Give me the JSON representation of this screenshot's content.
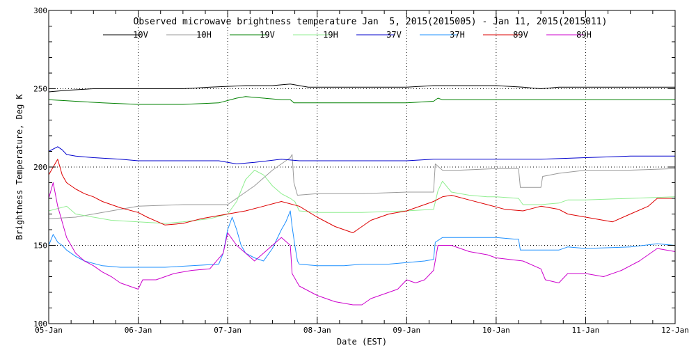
{
  "chart_data": {
    "type": "line",
    "title": "Observed microwave brightness temperature Jan  5, 2015(2015005) - Jan 11, 2015(2015011)",
    "xlabel": "Date (EST)",
    "ylabel": "Brightness Temperature, Deg K",
    "xlim": [
      0,
      7
    ],
    "ylim": [
      100,
      300
    ],
    "x_ticks": [
      {
        "x": 0,
        "label": "05-Jan"
      },
      {
        "x": 1,
        "label": "06-Jan"
      },
      {
        "x": 2,
        "label": "07-Jan"
      },
      {
        "x": 3,
        "label": "08-Jan"
      },
      {
        "x": 4,
        "label": "09-Jan"
      },
      {
        "x": 5,
        "label": "10-Jan"
      },
      {
        "x": 6,
        "label": "11-Jan"
      },
      {
        "x": 7,
        "label": "12-Jan"
      }
    ],
    "y_ticks": [
      100,
      150,
      200,
      250,
      300
    ],
    "grid": "dotted at major ticks",
    "legend": "top",
    "series": [
      {
        "name": "10V",
        "color": "#000000",
        "points": [
          [
            0,
            248
          ],
          [
            0.2,
            249
          ],
          [
            0.5,
            250
          ],
          [
            1.0,
            250
          ],
          [
            1.5,
            250
          ],
          [
            1.8,
            251
          ],
          [
            2.2,
            252
          ],
          [
            2.5,
            252
          ],
          [
            2.7,
            253
          ],
          [
            2.8,
            252
          ],
          [
            2.9,
            251
          ],
          [
            3.5,
            251
          ],
          [
            4.0,
            251
          ],
          [
            4.3,
            252
          ],
          [
            4.5,
            252
          ],
          [
            4.8,
            252
          ],
          [
            5.0,
            252
          ],
          [
            5.3,
            251
          ],
          [
            5.5,
            250
          ],
          [
            5.7,
            251
          ],
          [
            6.0,
            251
          ],
          [
            6.5,
            251
          ],
          [
            7,
            251
          ]
        ]
      },
      {
        "name": "10H",
        "color": "#999999",
        "points": [
          [
            0,
            167
          ],
          [
            0.3,
            168
          ],
          [
            0.6,
            171
          ],
          [
            0.8,
            173
          ],
          [
            1.0,
            175
          ],
          [
            1.5,
            176
          ],
          [
            2.0,
            176
          ],
          [
            2.1,
            180
          ],
          [
            2.3,
            188
          ],
          [
            2.5,
            198
          ],
          [
            2.7,
            206
          ],
          [
            2.72,
            208
          ],
          [
            2.74,
            190
          ],
          [
            2.78,
            182
          ],
          [
            3.0,
            183
          ],
          [
            3.5,
            183
          ],
          [
            4.0,
            184
          ],
          [
            4.3,
            184
          ],
          [
            4.32,
            202
          ],
          [
            4.4,
            198
          ],
          [
            4.6,
            198
          ],
          [
            5.0,
            199
          ],
          [
            5.25,
            199
          ],
          [
            5.27,
            187
          ],
          [
            5.4,
            187
          ],
          [
            5.5,
            187
          ],
          [
            5.52,
            194
          ],
          [
            5.7,
            196
          ],
          [
            6.0,
            198
          ],
          [
            6.5,
            198
          ],
          [
            7,
            199
          ]
        ]
      },
      {
        "name": "19V",
        "color": "#008000",
        "points": [
          [
            0,
            243
          ],
          [
            0.3,
            242
          ],
          [
            0.6,
            241
          ],
          [
            1.0,
            240
          ],
          [
            1.5,
            240
          ],
          [
            1.9,
            241
          ],
          [
            2.1,
            244
          ],
          [
            2.2,
            245
          ],
          [
            2.4,
            244
          ],
          [
            2.6,
            243
          ],
          [
            2.7,
            243
          ],
          [
            2.74,
            241
          ],
          [
            2.8,
            241
          ],
          [
            3.5,
            241
          ],
          [
            4.0,
            241
          ],
          [
            4.3,
            242
          ],
          [
            4.35,
            244
          ],
          [
            4.4,
            243
          ],
          [
            5.0,
            243
          ],
          [
            5.5,
            243
          ],
          [
            6.0,
            243
          ],
          [
            6.5,
            243
          ],
          [
            7,
            243
          ]
        ]
      },
      {
        "name": "19H",
        "color": "#90ee90",
        "points": [
          [
            0,
            172
          ],
          [
            0.2,
            175
          ],
          [
            0.3,
            170
          ],
          [
            0.5,
            168
          ],
          [
            0.7,
            166
          ],
          [
            1.0,
            165
          ],
          [
            1.3,
            164
          ],
          [
            1.5,
            165
          ],
          [
            1.8,
            167
          ],
          [
            2.0,
            170
          ],
          [
            2.1,
            178
          ],
          [
            2.2,
            192
          ],
          [
            2.3,
            198
          ],
          [
            2.4,
            195
          ],
          [
            2.5,
            188
          ],
          [
            2.6,
            183
          ],
          [
            2.7,
            180
          ],
          [
            2.75,
            178
          ],
          [
            2.8,
            172
          ],
          [
            3.0,
            171
          ],
          [
            3.5,
            171
          ],
          [
            4.0,
            172
          ],
          [
            4.3,
            173
          ],
          [
            4.35,
            185
          ],
          [
            4.4,
            191
          ],
          [
            4.5,
            184
          ],
          [
            4.7,
            182
          ],
          [
            4.9,
            181
          ],
          [
            5.0,
            181
          ],
          [
            5.25,
            180
          ],
          [
            5.3,
            176
          ],
          [
            5.5,
            176
          ],
          [
            5.7,
            177
          ],
          [
            5.8,
            179
          ],
          [
            6.0,
            179
          ],
          [
            6.5,
            180
          ],
          [
            7,
            181
          ]
        ]
      },
      {
        "name": "37V",
        "color": "#0000cd",
        "points": [
          [
            0,
            210
          ],
          [
            0.1,
            213
          ],
          [
            0.15,
            211
          ],
          [
            0.2,
            208
          ],
          [
            0.3,
            207
          ],
          [
            0.5,
            206
          ],
          [
            0.8,
            205
          ],
          [
            1.0,
            204
          ],
          [
            1.3,
            204
          ],
          [
            1.6,
            204
          ],
          [
            1.9,
            204
          ],
          [
            2.0,
            203
          ],
          [
            2.1,
            202
          ],
          [
            2.3,
            203
          ],
          [
            2.6,
            205
          ],
          [
            2.8,
            204
          ],
          [
            3.0,
            204
          ],
          [
            3.5,
            204
          ],
          [
            4.0,
            204
          ],
          [
            4.3,
            205
          ],
          [
            4.6,
            205
          ],
          [
            5.0,
            205
          ],
          [
            5.5,
            205
          ],
          [
            6.0,
            206
          ],
          [
            6.5,
            207
          ],
          [
            7,
            207
          ]
        ]
      },
      {
        "name": "37H",
        "color": "#1e90ff",
        "points": [
          [
            0,
            150
          ],
          [
            0.05,
            157
          ],
          [
            0.1,
            152
          ],
          [
            0.15,
            150
          ],
          [
            0.2,
            147
          ],
          [
            0.3,
            143
          ],
          [
            0.4,
            140
          ],
          [
            0.6,
            137
          ],
          [
            0.8,
            136
          ],
          [
            1.0,
            136
          ],
          [
            1.3,
            136
          ],
          [
            1.6,
            137
          ],
          [
            1.9,
            138
          ],
          [
            1.95,
            145
          ],
          [
            2.0,
            160
          ],
          [
            2.05,
            168
          ],
          [
            2.1,
            160
          ],
          [
            2.15,
            150
          ],
          [
            2.2,
            145
          ],
          [
            2.3,
            142
          ],
          [
            2.4,
            140
          ],
          [
            2.5,
            148
          ],
          [
            2.6,
            160
          ],
          [
            2.65,
            165
          ],
          [
            2.7,
            172
          ],
          [
            2.72,
            162
          ],
          [
            2.75,
            150
          ],
          [
            2.78,
            140
          ],
          [
            2.8,
            138
          ],
          [
            3.0,
            137
          ],
          [
            3.3,
            137
          ],
          [
            3.5,
            138
          ],
          [
            3.8,
            138
          ],
          [
            4.0,
            139
          ],
          [
            4.2,
            140
          ],
          [
            4.3,
            141
          ],
          [
            4.32,
            152
          ],
          [
            4.4,
            155
          ],
          [
            4.6,
            155
          ],
          [
            4.8,
            155
          ],
          [
            5.0,
            155
          ],
          [
            5.2,
            154
          ],
          [
            5.25,
            154
          ],
          [
            5.27,
            147
          ],
          [
            5.5,
            147
          ],
          [
            5.7,
            147
          ],
          [
            5.8,
            149
          ],
          [
            6.0,
            148
          ],
          [
            6.5,
            149
          ],
          [
            6.8,
            151
          ],
          [
            7,
            150
          ]
        ]
      },
      {
        "name": "89V",
        "color": "#dd0000",
        "points": [
          [
            0,
            195
          ],
          [
            0.05,
            200
          ],
          [
            0.1,
            205
          ],
          [
            0.15,
            195
          ],
          [
            0.2,
            190
          ],
          [
            0.3,
            186
          ],
          [
            0.4,
            183
          ],
          [
            0.5,
            181
          ],
          [
            0.6,
            178
          ],
          [
            0.8,
            174
          ],
          [
            1.0,
            171
          ],
          [
            1.1,
            168
          ],
          [
            1.3,
            163
          ],
          [
            1.5,
            164
          ],
          [
            1.7,
            167
          ],
          [
            1.8,
            168
          ],
          [
            2.0,
            170
          ],
          [
            2.2,
            172
          ],
          [
            2.4,
            175
          ],
          [
            2.6,
            178
          ],
          [
            2.8,
            175
          ],
          [
            3.0,
            168
          ],
          [
            3.2,
            162
          ],
          [
            3.4,
            158
          ],
          [
            3.5,
            162
          ],
          [
            3.6,
            166
          ],
          [
            3.8,
            170
          ],
          [
            4.0,
            172
          ],
          [
            4.2,
            176
          ],
          [
            4.3,
            178
          ],
          [
            4.4,
            181
          ],
          [
            4.5,
            182
          ],
          [
            4.7,
            179
          ],
          [
            4.9,
            176
          ],
          [
            5.1,
            173
          ],
          [
            5.3,
            172
          ],
          [
            5.5,
            175
          ],
          [
            5.7,
            173
          ],
          [
            5.8,
            170
          ],
          [
            6.0,
            168
          ],
          [
            6.2,
            166
          ],
          [
            6.3,
            165
          ],
          [
            6.5,
            170
          ],
          [
            6.7,
            175
          ],
          [
            6.8,
            180
          ],
          [
            7,
            180
          ]
        ]
      },
      {
        "name": "89H",
        "color": "#cc00cc",
        "points": [
          [
            0,
            180
          ],
          [
            0.05,
            190
          ],
          [
            0.1,
            175
          ],
          [
            0.15,
            165
          ],
          [
            0.2,
            155
          ],
          [
            0.3,
            145
          ],
          [
            0.4,
            140
          ],
          [
            0.5,
            137
          ],
          [
            0.6,
            133
          ],
          [
            0.7,
            130
          ],
          [
            0.8,
            126
          ],
          [
            0.9,
            124
          ],
          [
            1.0,
            122
          ],
          [
            1.05,
            128
          ],
          [
            1.2,
            128
          ],
          [
            1.4,
            132
          ],
          [
            1.6,
            134
          ],
          [
            1.8,
            135
          ],
          [
            1.95,
            145
          ],
          [
            2.0,
            158
          ],
          [
            2.1,
            150
          ],
          [
            2.2,
            145
          ],
          [
            2.3,
            140
          ],
          [
            2.4,
            145
          ],
          [
            2.5,
            150
          ],
          [
            2.6,
            155
          ],
          [
            2.7,
            150
          ],
          [
            2.72,
            132
          ],
          [
            2.8,
            124
          ],
          [
            3.0,
            118
          ],
          [
            3.2,
            114
          ],
          [
            3.4,
            112
          ],
          [
            3.5,
            112
          ],
          [
            3.6,
            116
          ],
          [
            3.8,
            120
          ],
          [
            3.9,
            122
          ],
          [
            4.0,
            128
          ],
          [
            4.1,
            126
          ],
          [
            4.2,
            128
          ],
          [
            4.3,
            134
          ],
          [
            4.35,
            150
          ],
          [
            4.5,
            150
          ],
          [
            4.7,
            146
          ],
          [
            4.9,
            144
          ],
          [
            5.0,
            142
          ],
          [
            5.3,
            140
          ],
          [
            5.5,
            135
          ],
          [
            5.55,
            128
          ],
          [
            5.7,
            126
          ],
          [
            5.8,
            132
          ],
          [
            6.0,
            132
          ],
          [
            6.2,
            130
          ],
          [
            6.4,
            134
          ],
          [
            6.6,
            140
          ],
          [
            6.8,
            148
          ],
          [
            7,
            146
          ]
        ]
      }
    ]
  }
}
